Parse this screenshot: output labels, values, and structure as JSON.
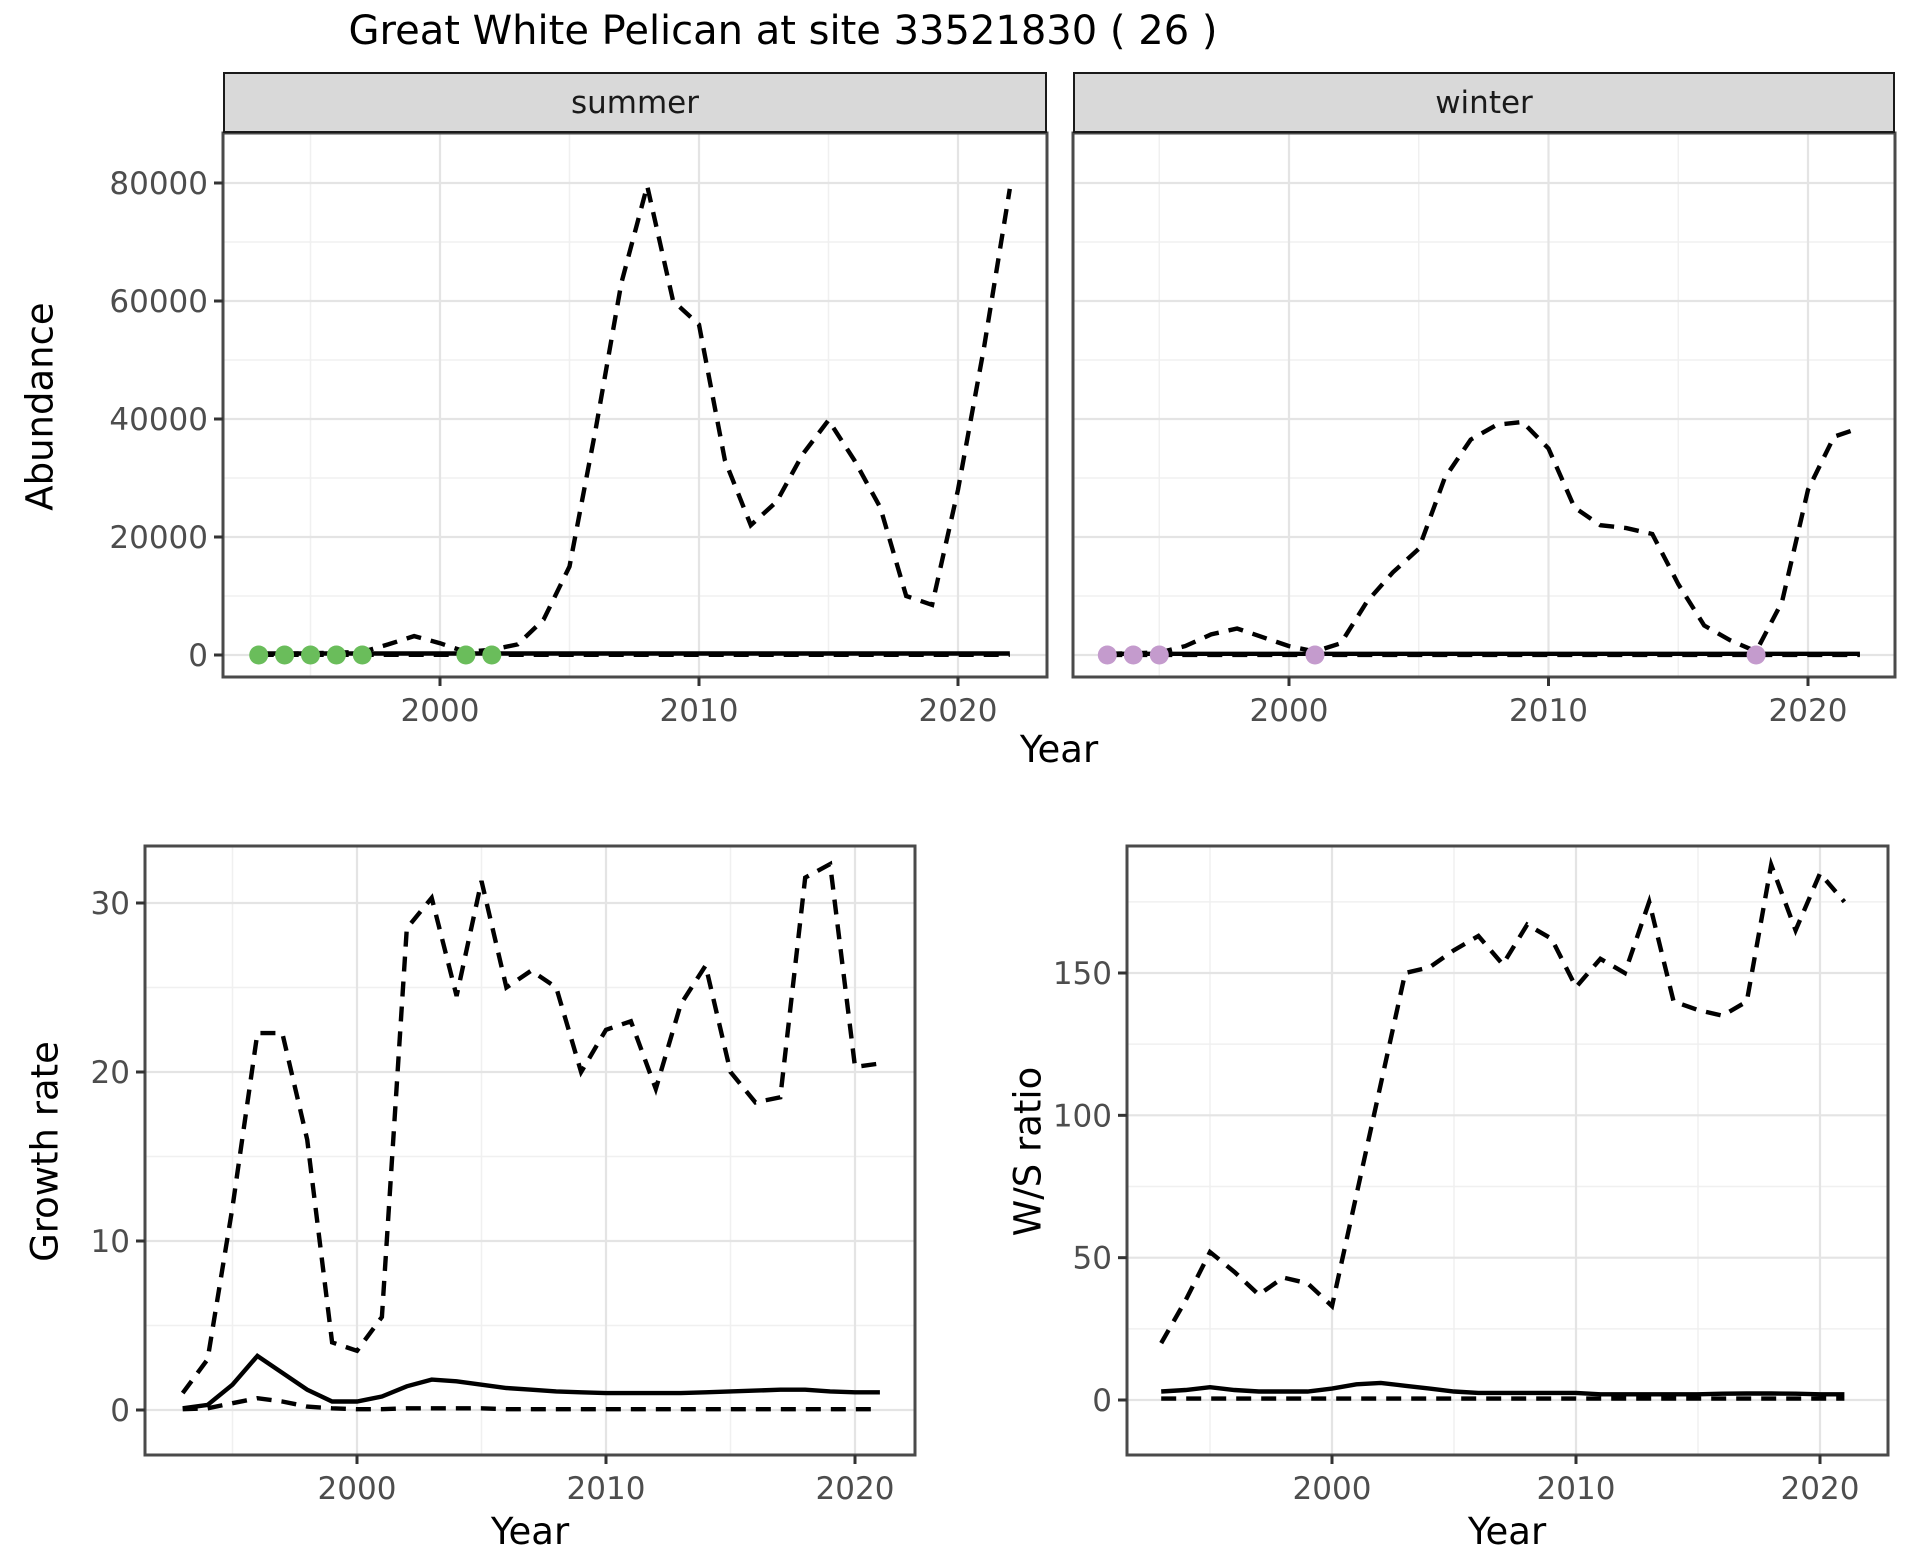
{
  "title": "Great White Pelican at site 33521830 ( 26 )",
  "facets": [
    "summer",
    "winter"
  ],
  "labels": {
    "abundance": "Abundance",
    "growth_rate": "Growth rate",
    "ws_ratio": "W/S ratio",
    "year": "Year"
  },
  "colors": {
    "line": "#000000",
    "summer_point": "#6abd5b",
    "winter_point": "#c49bcd",
    "strip_bg": "#d9d9d9",
    "panel_border": "#4a4a4a",
    "grid_major": "#e4e4e4",
    "grid_minor": "#f0f0f0",
    "tick_label": "#4d4d4d"
  },
  "chart_data": [
    {
      "type": "line",
      "id": "abundance_summer",
      "facet": "summer",
      "xlabel": "Year",
      "ylabel": "Abundance",
      "x_major_ticks": [
        2000,
        2010,
        2020
      ],
      "x_minor_ticks": [
        1995,
        2005,
        2015
      ],
      "y_major_ticks": [
        0,
        20000,
        40000,
        60000,
        80000
      ],
      "y_minor_ticks": [
        10000,
        30000,
        50000,
        70000
      ],
      "show_y_tick_labels": true,
      "x": [
        1993,
        1994,
        1995,
        1996,
        1997,
        1998,
        1999,
        2000,
        2001,
        2002,
        2003,
        2004,
        2005,
        2006,
        2007,
        2008,
        2009,
        2010,
        2011,
        2012,
        2013,
        2014,
        2015,
        2016,
        2017,
        2018,
        2019,
        2020,
        2021,
        2022
      ],
      "series": [
        {
          "name": "upper_ci",
          "style": "dashed",
          "values": [
            100,
            200,
            300,
            400,
            500,
            1800,
            3200,
            2000,
            500,
            900,
            1800,
            6000,
            15000,
            38000,
            63000,
            79500,
            60000,
            56000,
            33000,
            22000,
            26000,
            34000,
            39800,
            33000,
            25000,
            10000,
            8500,
            28000,
            52000,
            79000
          ]
        },
        {
          "name": "lower_ci",
          "style": "dashed",
          "values": [
            30,
            30,
            30,
            30,
            30,
            30,
            30,
            30,
            30,
            30,
            30,
            30,
            30,
            30,
            30,
            30,
            30,
            30,
            30,
            30,
            30,
            30,
            30,
            30,
            30,
            30,
            30,
            30,
            30,
            30
          ]
        },
        {
          "name": "estimate",
          "style": "solid",
          "values": [
            250,
            250,
            250,
            250,
            250,
            250,
            250,
            250,
            250,
            250,
            250,
            250,
            250,
            250,
            250,
            250,
            250,
            250,
            250,
            250,
            250,
            250,
            250,
            250,
            250,
            250,
            250,
            250,
            250,
            250
          ]
        }
      ],
      "points": {
        "name": "observed_summer_counts",
        "color": "#6abd5b",
        "x": [
          1993,
          1994,
          1995,
          1996,
          1997,
          2001,
          2002
        ],
        "y": [
          0,
          0,
          0,
          0,
          0,
          0,
          0
        ]
      }
    },
    {
      "type": "line",
      "id": "abundance_winter",
      "facet": "winter",
      "xlabel": "Year",
      "ylabel": "Abundance",
      "x_major_ticks": [
        2000,
        2010,
        2020
      ],
      "x_minor_ticks": [
        1995,
        2005,
        2015
      ],
      "y_major_ticks": [
        0,
        20000,
        40000,
        60000,
        80000
      ],
      "y_minor_ticks": [
        10000,
        30000,
        50000,
        70000
      ],
      "show_y_tick_labels": false,
      "x": [
        1993,
        1994,
        1995,
        1996,
        1997,
        1998,
        1999,
        2000,
        2001,
        2002,
        2003,
        2004,
        2005,
        2006,
        2007,
        2008,
        2009,
        2010,
        2011,
        2012,
        2013,
        2014,
        2015,
        2016,
        2017,
        2018,
        2019,
        2020,
        2021,
        2022
      ],
      "series": [
        {
          "name": "upper_ci",
          "style": "dashed",
          "values": [
            200,
            300,
            400,
            1500,
            3500,
            4500,
            3000,
            1500,
            600,
            2000,
            9000,
            14000,
            18000,
            30000,
            36500,
            39000,
            39500,
            35000,
            25000,
            22000,
            21500,
            20500,
            12000,
            5000,
            2500,
            600,
            9000,
            28000,
            37000,
            38500
          ]
        },
        {
          "name": "lower_ci",
          "style": "dashed",
          "values": [
            20,
            20,
            20,
            20,
            20,
            20,
            20,
            20,
            20,
            20,
            20,
            20,
            20,
            20,
            20,
            20,
            20,
            20,
            20,
            20,
            20,
            20,
            20,
            20,
            20,
            20,
            20,
            20,
            20,
            20
          ]
        },
        {
          "name": "estimate",
          "style": "solid",
          "values": [
            200,
            200,
            200,
            200,
            200,
            200,
            200,
            200,
            200,
            200,
            200,
            200,
            200,
            200,
            200,
            200,
            200,
            200,
            200,
            200,
            200,
            200,
            200,
            200,
            200,
            200,
            200,
            200,
            200,
            200
          ]
        }
      ],
      "points": {
        "name": "observed_winter_counts",
        "color": "#c49bcd",
        "x": [
          1993,
          1994,
          1995,
          2001,
          2018
        ],
        "y": [
          0,
          0,
          0,
          0,
          0
        ]
      }
    },
    {
      "type": "line",
      "id": "growth_rate",
      "xlabel": "Year",
      "ylabel": "Growth rate",
      "x_major_ticks": [
        2000,
        2010,
        2020
      ],
      "x_minor_ticks": [
        1995,
        2005,
        2015
      ],
      "y_major_ticks": [
        0,
        10,
        20,
        30
      ],
      "y_minor_ticks": [
        5,
        15,
        25
      ],
      "show_y_tick_labels": true,
      "x": [
        1993,
        1994,
        1995,
        1996,
        1997,
        1998,
        1999,
        2000,
        2001,
        2002,
        2003,
        2004,
        2005,
        2006,
        2007,
        2008,
        2009,
        2010,
        2011,
        2012,
        2013,
        2014,
        2015,
        2016,
        2017,
        2018,
        2019,
        2020,
        2021
      ],
      "series": [
        {
          "name": "upper_ci",
          "style": "dashed",
          "values": [
            1,
            3,
            12,
            22.3,
            22.3,
            16,
            4,
            3.5,
            5.5,
            28.5,
            30.3,
            24.5,
            31.3,
            25,
            26,
            25,
            20,
            22.5,
            23,
            19,
            24,
            26.3,
            20,
            18.2,
            18.5,
            31.5,
            32.3,
            20.3,
            20.5
          ]
        },
        {
          "name": "lower_ci",
          "style": "dashed",
          "values": [
            0.05,
            0.1,
            0.4,
            0.7,
            0.5,
            0.2,
            0.1,
            0.05,
            0.05,
            0.1,
            0.1,
            0.1,
            0.1,
            0.05,
            0.05,
            0.05,
            0.05,
            0.05,
            0.05,
            0.05,
            0.05,
            0.05,
            0.05,
            0.05,
            0.05,
            0.05,
            0.05,
            0.05,
            0.05
          ]
        },
        {
          "name": "estimate",
          "style": "solid",
          "values": [
            0.1,
            0.3,
            1.5,
            3.2,
            2.2,
            1.2,
            0.5,
            0.5,
            0.8,
            1.4,
            1.8,
            1.7,
            1.5,
            1.3,
            1.2,
            1.1,
            1.05,
            1,
            1,
            1,
            1,
            1.05,
            1.1,
            1.15,
            1.2,
            1.2,
            1.1,
            1.05,
            1.05
          ]
        }
      ]
    },
    {
      "type": "line",
      "id": "ws_ratio",
      "xlabel": "Year",
      "ylabel": "W/S ratio",
      "x_major_ticks": [
        2000,
        2010,
        2020
      ],
      "x_minor_ticks": [
        1995,
        2005,
        2015
      ],
      "y_major_ticks": [
        0,
        50,
        100,
        150
      ],
      "y_minor_ticks": [
        25,
        75,
        125,
        175
      ],
      "show_y_tick_labels": true,
      "x": [
        1993,
        1994,
        1995,
        1996,
        1997,
        1998,
        1999,
        2000,
        2001,
        2002,
        2003,
        2004,
        2005,
        2006,
        2007,
        2008,
        2009,
        2010,
        2011,
        2012,
        2013,
        2014,
        2015,
        2016,
        2017,
        2018,
        2019,
        2020,
        2021
      ],
      "series": [
        {
          "name": "upper_ci",
          "style": "dashed",
          "values": [
            20,
            35,
            52,
            45,
            37,
            43,
            41,
            33,
            72,
            111,
            150,
            152,
            158,
            163,
            153,
            167,
            162,
            145,
            155,
            150,
            175,
            140,
            137,
            135,
            140,
            188,
            165,
            185,
            175
          ]
        },
        {
          "name": "lower_ci",
          "style": "dashed",
          "values": [
            0.5,
            0.5,
            0.5,
            0.5,
            0.5,
            0.5,
            0.5,
            0.5,
            0.5,
            0.5,
            0.5,
            0.5,
            0.5,
            0.5,
            0.5,
            0.5,
            0.5,
            0.5,
            0.5,
            0.5,
            0.5,
            0.5,
            0.5,
            0.5,
            0.5,
            0.5,
            0.5,
            0.5,
            0.5
          ]
        },
        {
          "name": "estimate",
          "style": "solid",
          "values": [
            3,
            3.5,
            4.5,
            3.5,
            3,
            3,
            3,
            4,
            5.5,
            6,
            5,
            4,
            3,
            2.5,
            2.5,
            2.5,
            2.5,
            2.5,
            2,
            2,
            2,
            2,
            2,
            2.2,
            2.3,
            2.3,
            2.2,
            2,
            2
          ]
        }
      ]
    }
  ]
}
